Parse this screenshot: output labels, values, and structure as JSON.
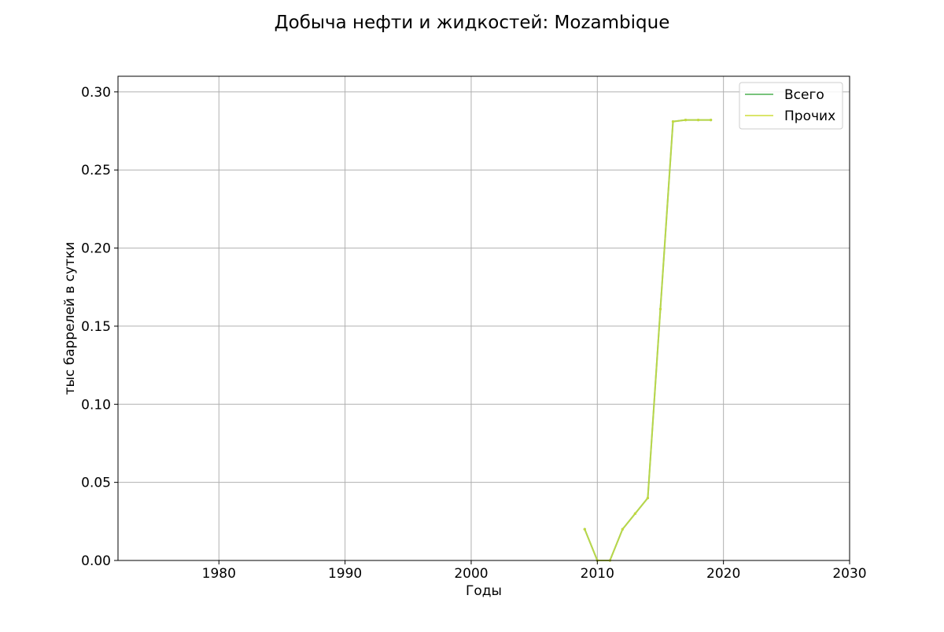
{
  "chart_data": {
    "type": "line",
    "title": "Добыча нефти и жидкостей: Mozambique",
    "xlabel": "Годы",
    "ylabel": "тыс баррелей в сутки",
    "xlim": [
      1972,
      2030
    ],
    "ylim": [
      0,
      0.31
    ],
    "x_ticks": [
      1980,
      1990,
      2000,
      2010,
      2020,
      2030
    ],
    "y_ticks": [
      0.0,
      0.05,
      0.1,
      0.15,
      0.2,
      0.25,
      0.3
    ],
    "y_tick_labels": [
      "0.00",
      "0.05",
      "0.10",
      "0.15",
      "0.20",
      "0.25",
      "0.30"
    ],
    "grid": true,
    "legend_position": "top-right",
    "x": [
      2009,
      2010,
      2011,
      2012,
      2013,
      2014,
      2015,
      2016,
      2017,
      2018,
      2019
    ],
    "series": [
      {
        "name": "Всего",
        "color": "#4caf50",
        "values": [
          0.02,
          0.0,
          0.0,
          0.02,
          0.03,
          0.04,
          0.161,
          0.281,
          0.282,
          0.282,
          0.282
        ]
      },
      {
        "name": "Прочих",
        "color": "#cddc39",
        "values": [
          0.02,
          0.0,
          0.0,
          0.02,
          0.03,
          0.04,
          0.161,
          0.281,
          0.282,
          0.282,
          0.282
        ]
      }
    ]
  }
}
